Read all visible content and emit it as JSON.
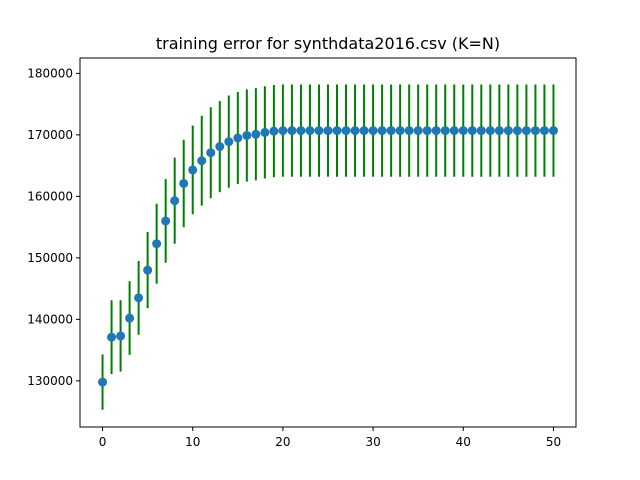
{
  "chart_data": {
    "type": "scatter",
    "title": "training error for synthdata2016.csv (K=N)",
    "xlabel": "",
    "ylabel": "",
    "xlim": [
      -2.5,
      52.5
    ],
    "ylim": [
      122500,
      182500
    ],
    "xticks": [
      0,
      10,
      20,
      30,
      40,
      50
    ],
    "yticks": [
      130000,
      140000,
      150000,
      160000,
      170000,
      180000
    ],
    "grid": false,
    "legend": "none",
    "marker_color": "#1f77b4",
    "errorbar_color": "#008000",
    "x": [
      0,
      1,
      2,
      3,
      4,
      5,
      6,
      7,
      8,
      9,
      10,
      11,
      12,
      13,
      14,
      15,
      16,
      17,
      18,
      19,
      20,
      21,
      22,
      23,
      24,
      25,
      26,
      27,
      28,
      29,
      30,
      31,
      32,
      33,
      34,
      35,
      36,
      37,
      38,
      39,
      40,
      41,
      42,
      43,
      44,
      45,
      46,
      47,
      48,
      49,
      50
    ],
    "y": [
      129800,
      137100,
      137300,
      140200,
      143500,
      148000,
      152300,
      156000,
      159300,
      162100,
      164300,
      165800,
      167100,
      168100,
      168900,
      169500,
      169900,
      170100,
      170400,
      170600,
      170700,
      170700,
      170700,
      170700,
      170700,
      170700,
      170700,
      170700,
      170700,
      170700,
      170700,
      170700,
      170700,
      170700,
      170700,
      170700,
      170700,
      170700,
      170700,
      170700,
      170700,
      170700,
      170700,
      170700,
      170700,
      170700,
      170700,
      170700,
      170700,
      170700,
      170700
    ],
    "err": [
      4500,
      6000,
      5800,
      6000,
      6000,
      6200,
      6500,
      6800,
      7000,
      7100,
      7200,
      7300,
      7400,
      7400,
      7500,
      7500,
      7500,
      7500,
      7500,
      7500,
      7500,
      7500,
      7500,
      7500,
      7500,
      7500,
      7500,
      7500,
      7500,
      7500,
      7500,
      7500,
      7500,
      7500,
      7500,
      7500,
      7500,
      7500,
      7500,
      7500,
      7500,
      7500,
      7500,
      7500,
      7500,
      7500,
      7500,
      7500,
      7500,
      7500,
      7500
    ]
  }
}
